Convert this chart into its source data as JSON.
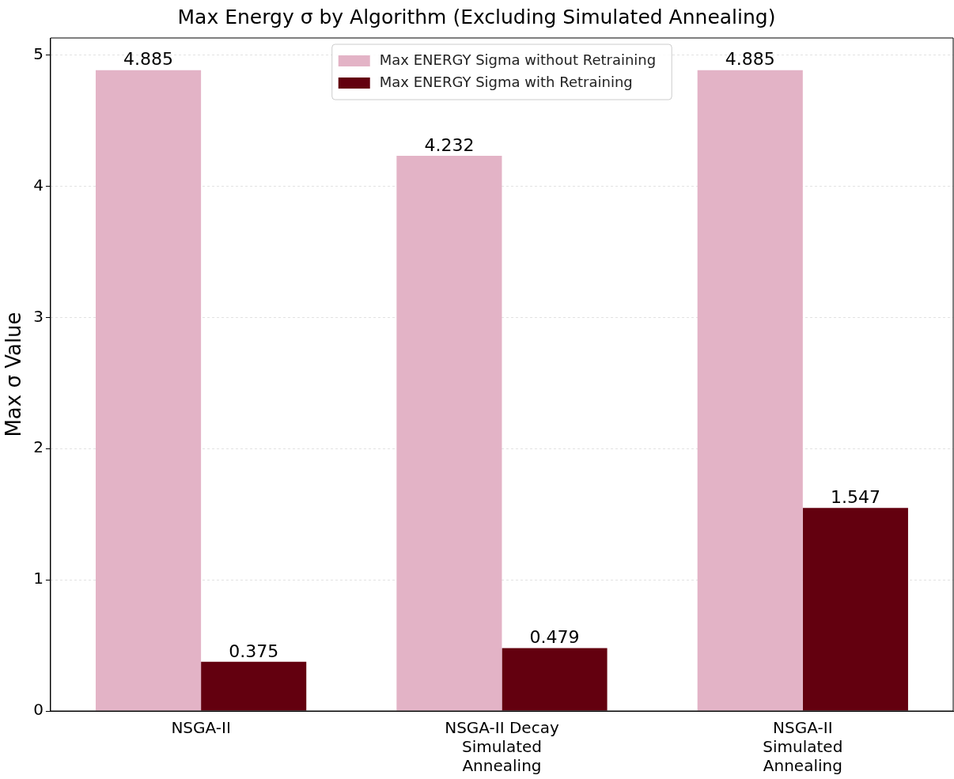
{
  "chart_data": {
    "type": "bar",
    "title": "Max Energy σ by Algorithm (Excluding Simulated Annealing)",
    "ylabel": "Max σ Value",
    "categories": [
      "NSGA-II",
      "NSGA-II Decay\nSimulated\nAnnealing",
      "NSGA-II\nSimulated\nAnnealing"
    ],
    "series": [
      {
        "name": "Max ENERGY Sigma without Retraining",
        "color": "#e3b3c6",
        "values": [
          4.885,
          4.232,
          4.885
        ]
      },
      {
        "name": "Max ENERGY Sigma with Retraining",
        "color": "#63000f",
        "values": [
          0.375,
          0.479,
          1.547
        ]
      }
    ],
    "ylim": [
      0,
      5.13
    ],
    "yticks": [
      0,
      1,
      2,
      3,
      4,
      5
    ],
    "grid": "y",
    "legend": "top",
    "data_labels": true
  }
}
